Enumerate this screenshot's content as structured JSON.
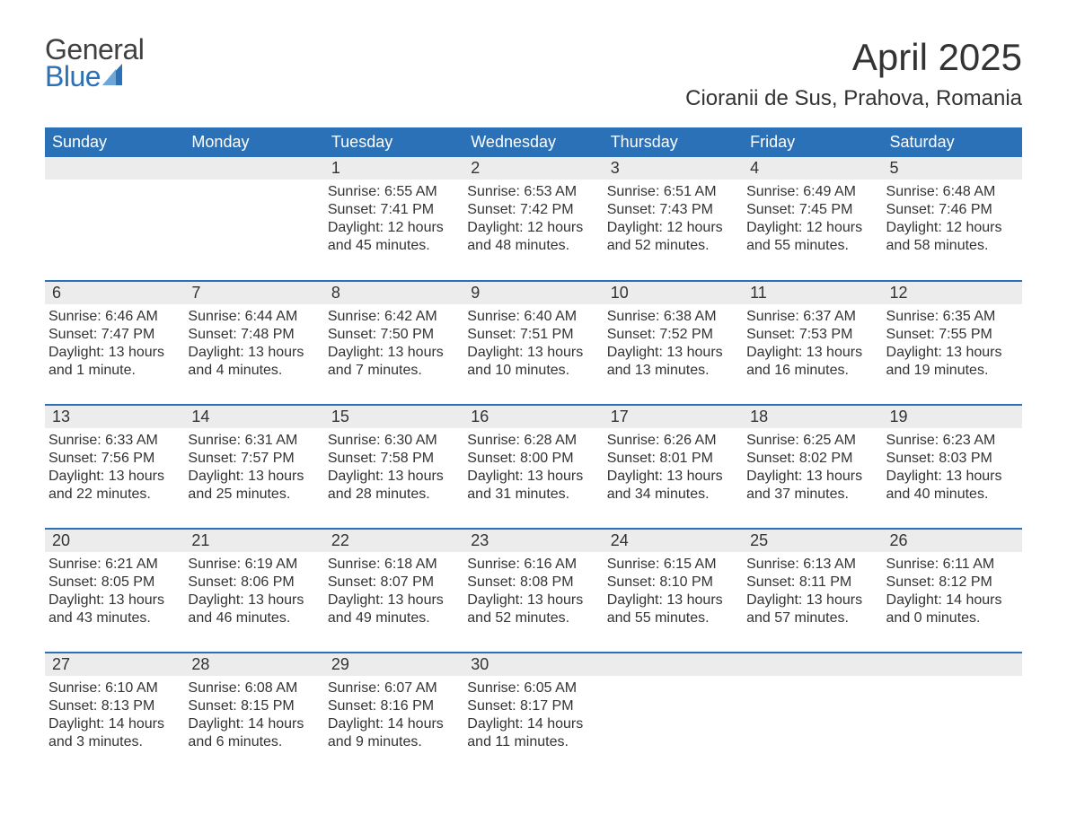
{
  "brand": {
    "line1": "General",
    "line2": "Blue",
    "accent_color": "#2a71b8",
    "text_color": "#404040"
  },
  "title": "April 2025",
  "location": "Cioranii de Sus, Prahova, Romania",
  "colors": {
    "header_bg": "#2a71b8",
    "header_text": "#ffffff",
    "daynum_bg": "#ececec",
    "body_text": "#333333",
    "page_bg": "#ffffff",
    "row_sep": "#2a71b8"
  },
  "typography": {
    "title_fontsize": 42,
    "location_fontsize": 24,
    "header_fontsize": 18,
    "daynum_fontsize": 18,
    "body_fontsize": 16
  },
  "layout": {
    "columns": 7,
    "rows": 5,
    "first_weekday_index": 2
  },
  "weekdays": [
    "Sunday",
    "Monday",
    "Tuesday",
    "Wednesday",
    "Thursday",
    "Friday",
    "Saturday"
  ],
  "days": [
    {
      "n": 1,
      "sunrise": "6:55 AM",
      "sunset": "7:41 PM",
      "daylight": "12 hours and 45 minutes."
    },
    {
      "n": 2,
      "sunrise": "6:53 AM",
      "sunset": "7:42 PM",
      "daylight": "12 hours and 48 minutes."
    },
    {
      "n": 3,
      "sunrise": "6:51 AM",
      "sunset": "7:43 PM",
      "daylight": "12 hours and 52 minutes."
    },
    {
      "n": 4,
      "sunrise": "6:49 AM",
      "sunset": "7:45 PM",
      "daylight": "12 hours and 55 minutes."
    },
    {
      "n": 5,
      "sunrise": "6:48 AM",
      "sunset": "7:46 PM",
      "daylight": "12 hours and 58 minutes."
    },
    {
      "n": 6,
      "sunrise": "6:46 AM",
      "sunset": "7:47 PM",
      "daylight": "13 hours and 1 minute."
    },
    {
      "n": 7,
      "sunrise": "6:44 AM",
      "sunset": "7:48 PM",
      "daylight": "13 hours and 4 minutes."
    },
    {
      "n": 8,
      "sunrise": "6:42 AM",
      "sunset": "7:50 PM",
      "daylight": "13 hours and 7 minutes."
    },
    {
      "n": 9,
      "sunrise": "6:40 AM",
      "sunset": "7:51 PM",
      "daylight": "13 hours and 10 minutes."
    },
    {
      "n": 10,
      "sunrise": "6:38 AM",
      "sunset": "7:52 PM",
      "daylight": "13 hours and 13 minutes."
    },
    {
      "n": 11,
      "sunrise": "6:37 AM",
      "sunset": "7:53 PM",
      "daylight": "13 hours and 16 minutes."
    },
    {
      "n": 12,
      "sunrise": "6:35 AM",
      "sunset": "7:55 PM",
      "daylight": "13 hours and 19 minutes."
    },
    {
      "n": 13,
      "sunrise": "6:33 AM",
      "sunset": "7:56 PM",
      "daylight": "13 hours and 22 minutes."
    },
    {
      "n": 14,
      "sunrise": "6:31 AM",
      "sunset": "7:57 PM",
      "daylight": "13 hours and 25 minutes."
    },
    {
      "n": 15,
      "sunrise": "6:30 AM",
      "sunset": "7:58 PM",
      "daylight": "13 hours and 28 minutes."
    },
    {
      "n": 16,
      "sunrise": "6:28 AM",
      "sunset": "8:00 PM",
      "daylight": "13 hours and 31 minutes."
    },
    {
      "n": 17,
      "sunrise": "6:26 AM",
      "sunset": "8:01 PM",
      "daylight": "13 hours and 34 minutes."
    },
    {
      "n": 18,
      "sunrise": "6:25 AM",
      "sunset": "8:02 PM",
      "daylight": "13 hours and 37 minutes."
    },
    {
      "n": 19,
      "sunrise": "6:23 AM",
      "sunset": "8:03 PM",
      "daylight": "13 hours and 40 minutes."
    },
    {
      "n": 20,
      "sunrise": "6:21 AM",
      "sunset": "8:05 PM",
      "daylight": "13 hours and 43 minutes."
    },
    {
      "n": 21,
      "sunrise": "6:19 AM",
      "sunset": "8:06 PM",
      "daylight": "13 hours and 46 minutes."
    },
    {
      "n": 22,
      "sunrise": "6:18 AM",
      "sunset": "8:07 PM",
      "daylight": "13 hours and 49 minutes."
    },
    {
      "n": 23,
      "sunrise": "6:16 AM",
      "sunset": "8:08 PM",
      "daylight": "13 hours and 52 minutes."
    },
    {
      "n": 24,
      "sunrise": "6:15 AM",
      "sunset": "8:10 PM",
      "daylight": "13 hours and 55 minutes."
    },
    {
      "n": 25,
      "sunrise": "6:13 AM",
      "sunset": "8:11 PM",
      "daylight": "13 hours and 57 minutes."
    },
    {
      "n": 26,
      "sunrise": "6:11 AM",
      "sunset": "8:12 PM",
      "daylight": "14 hours and 0 minutes."
    },
    {
      "n": 27,
      "sunrise": "6:10 AM",
      "sunset": "8:13 PM",
      "daylight": "14 hours and 3 minutes."
    },
    {
      "n": 28,
      "sunrise": "6:08 AM",
      "sunset": "8:15 PM",
      "daylight": "14 hours and 6 minutes."
    },
    {
      "n": 29,
      "sunrise": "6:07 AM",
      "sunset": "8:16 PM",
      "daylight": "14 hours and 9 minutes."
    },
    {
      "n": 30,
      "sunrise": "6:05 AM",
      "sunset": "8:17 PM",
      "daylight": "14 hours and 11 minutes."
    }
  ],
  "labels": {
    "sunrise": "Sunrise:",
    "sunset": "Sunset:",
    "daylight": "Daylight:"
  }
}
